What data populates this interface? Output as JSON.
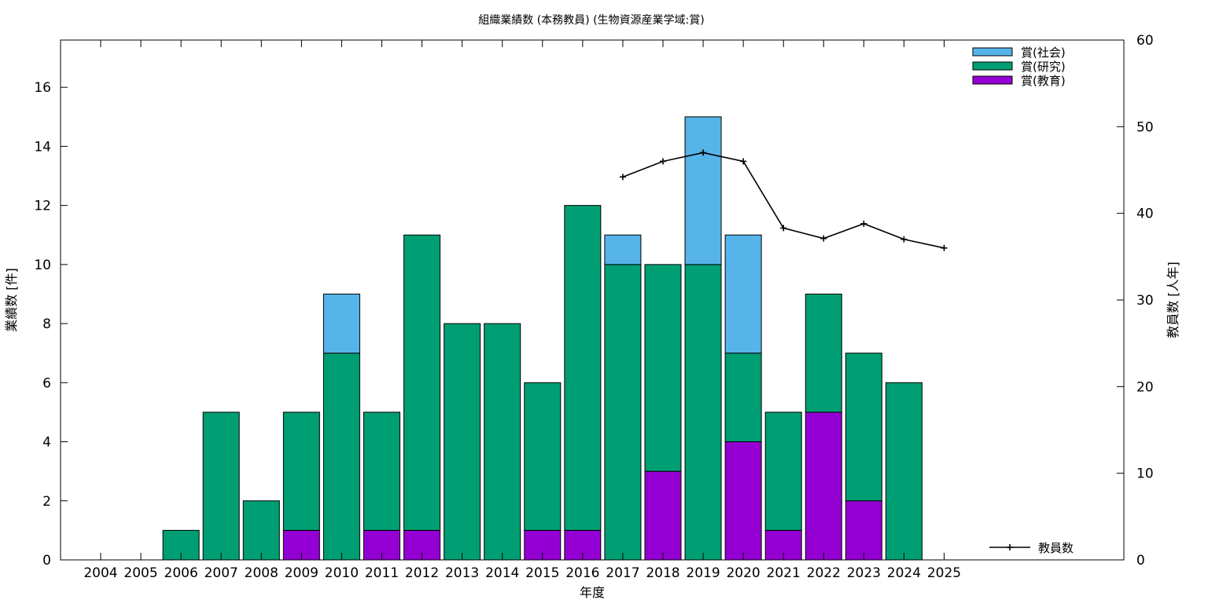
{
  "chart_data": {
    "type": "bar",
    "stacked": true,
    "title": "組織業績数 (本務教員) (生物資源産業学域:賞)",
    "xlabel": "年度",
    "ylabel": "業績数 [件]",
    "y2label": "教員数 [人年]",
    "ylim": [
      0,
      17.6
    ],
    "yticks": [
      0,
      2,
      4,
      6,
      8,
      10,
      12,
      14,
      16
    ],
    "y2lim": [
      0,
      60
    ],
    "y2ticks": [
      0,
      10,
      20,
      30,
      40,
      50,
      60
    ],
    "grid": false,
    "legend_position": "top-right",
    "categories": [
      "2004",
      "2005",
      "2006",
      "2007",
      "2008",
      "2009",
      "2010",
      "2011",
      "2012",
      "2013",
      "2014",
      "2015",
      "2016",
      "2017",
      "2018",
      "2019",
      "2020",
      "2021",
      "2022",
      "2023",
      "2024",
      "2025"
    ],
    "series": [
      {
        "name": "賞(教育)",
        "color": "#9400d3",
        "values": [
          0,
          0,
          0,
          0,
          0,
          1,
          0,
          1,
          1,
          0,
          0,
          1,
          1,
          0,
          3,
          0,
          4,
          1,
          5,
          2,
          0,
          0
        ]
      },
      {
        "name": "賞(研究)",
        "color": "#009e73",
        "values": [
          0,
          0,
          1,
          5,
          2,
          4,
          7,
          4,
          10,
          8,
          8,
          5,
          11,
          10,
          7,
          10,
          3,
          4,
          4,
          5,
          6,
          0
        ]
      },
      {
        "name": "賞(社会)",
        "color": "#56b4e9",
        "values": [
          0,
          0,
          0,
          0,
          0,
          0,
          2,
          0,
          0,
          0,
          0,
          0,
          0,
          1,
          0,
          5,
          4,
          0,
          0,
          0,
          0,
          0
        ]
      }
    ],
    "line_series": {
      "name": "教員数",
      "axis": "right",
      "color": "#000000",
      "x": [
        "2017",
        "2018",
        "2019",
        "2020",
        "2021",
        "2022",
        "2023",
        "2024",
        "2025"
      ],
      "values": [
        44.2,
        46.0,
        47.0,
        46.0,
        38.3,
        37.1,
        38.8,
        37.0,
        36.0
      ]
    }
  }
}
